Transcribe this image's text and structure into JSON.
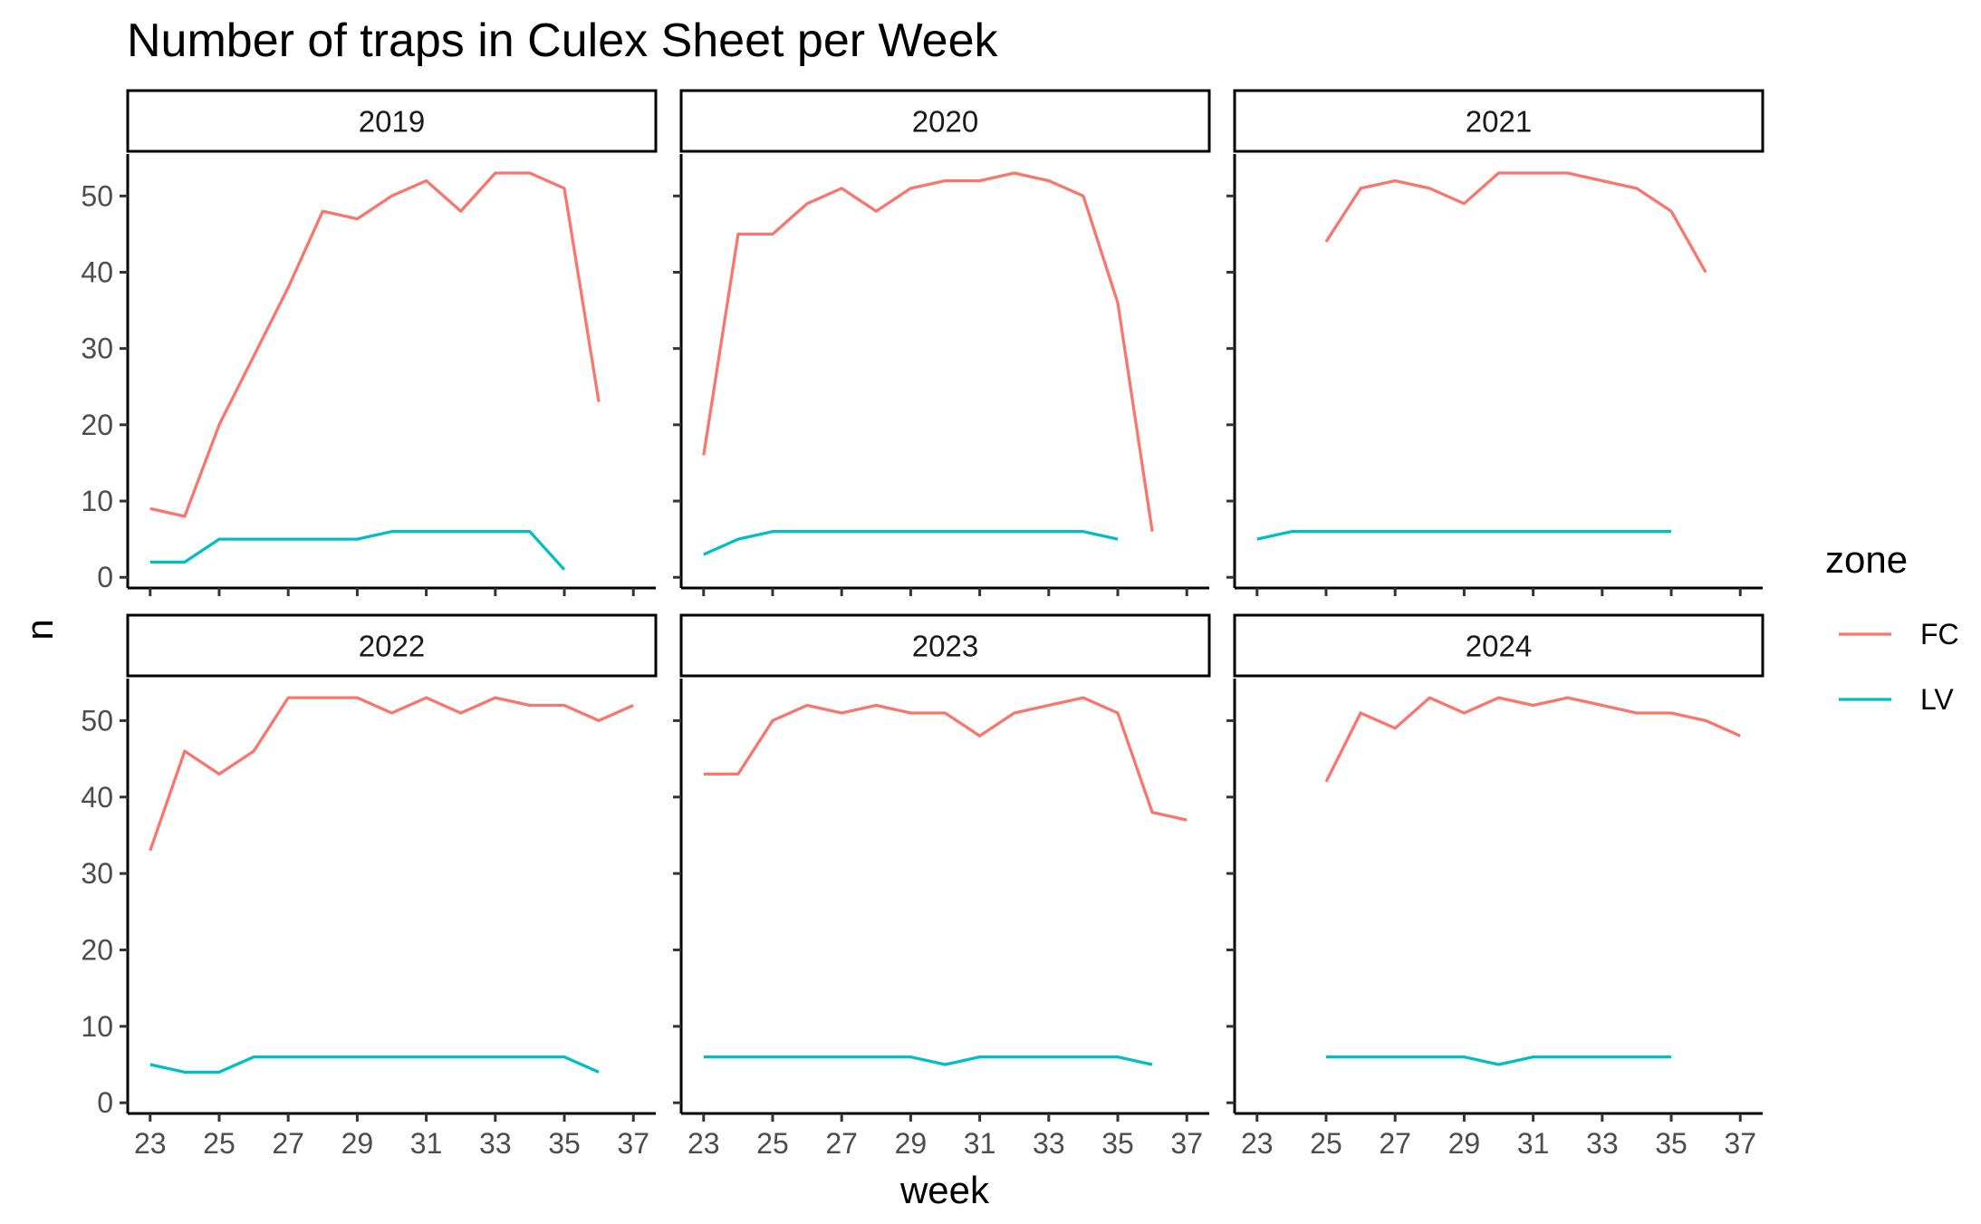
{
  "chart_data": {
    "type": "line",
    "title": "Number of traps in Culex Sheet per Week",
    "xlabel": "week",
    "ylabel": "n",
    "xlim": [
      22.35,
      37.65
    ],
    "ylim": [
      -1.4,
      55.5
    ],
    "x_ticks": [
      23,
      25,
      27,
      29,
      31,
      33,
      35,
      37
    ],
    "y_ticks": [
      0,
      10,
      20,
      30,
      40,
      50
    ],
    "legend": {
      "title": "zone",
      "position": "right",
      "entries": [
        "FC",
        "LV"
      ]
    },
    "series_colors": {
      "FC": "#F8766D",
      "LV": "#00BFC4"
    },
    "grid": false,
    "facets": [
      {
        "label": "2019",
        "series": [
          {
            "name": "FC",
            "x": [
              23,
              24,
              25,
              26,
              27,
              28,
              29,
              30,
              31,
              32,
              33,
              34,
              35,
              36
            ],
            "values": [
              9,
              8,
              20,
              29,
              38,
              48,
              47,
              50,
              52,
              48,
              53,
              53,
              51,
              23
            ]
          },
          {
            "name": "LV",
            "x": [
              23,
              24,
              25,
              26,
              27,
              28,
              29,
              30,
              31,
              32,
              33,
              34,
              35
            ],
            "values": [
              2,
              2,
              5,
              5,
              5,
              5,
              5,
              6,
              6,
              6,
              6,
              6,
              1
            ]
          }
        ]
      },
      {
        "label": "2020",
        "series": [
          {
            "name": "FC",
            "x": [
              23,
              24,
              25,
              26,
              27,
              28,
              29,
              30,
              31,
              32,
              33,
              34,
              35,
              36
            ],
            "values": [
              16,
              45,
              45,
              49,
              51,
              48,
              51,
              52,
              52,
              53,
              52,
              50,
              36,
              6
            ]
          },
          {
            "name": "LV",
            "x": [
              23,
              24,
              25,
              26,
              27,
              28,
              29,
              30,
              31,
              32,
              33,
              34,
              35
            ],
            "values": [
              3,
              5,
              6,
              6,
              6,
              6,
              6,
              6,
              6,
              6,
              6,
              6,
              5
            ]
          }
        ]
      },
      {
        "label": "2021",
        "series": [
          {
            "name": "FC",
            "x": [
              25,
              26,
              27,
              28,
              29,
              30,
              31,
              32,
              33,
              34,
              35,
              36
            ],
            "values": [
              44,
              51,
              52,
              51,
              49,
              53,
              53,
              53,
              52,
              51,
              48,
              40
            ]
          },
          {
            "name": "LV",
            "x": [
              23,
              24,
              25,
              26,
              27,
              28,
              29,
              30,
              31,
              32,
              33,
              34,
              35
            ],
            "values": [
              5,
              6,
              6,
              6,
              6,
              6,
              6,
              6,
              6,
              6,
              6,
              6,
              6
            ]
          }
        ]
      },
      {
        "label": "2022",
        "series": [
          {
            "name": "FC",
            "x": [
              23,
              24,
              25,
              26,
              27,
              28,
              29,
              30,
              31,
              32,
              33,
              34,
              35,
              36,
              37
            ],
            "values": [
              33,
              46,
              43,
              46,
              53,
              53,
              53,
              51,
              53,
              51,
              53,
              52,
              52,
              50,
              52
            ]
          },
          {
            "name": "LV",
            "x": [
              23,
              24,
              25,
              26,
              27,
              28,
              29,
              30,
              31,
              32,
              33,
              34,
              35,
              36
            ],
            "values": [
              5,
              4,
              4,
              6,
              6,
              6,
              6,
              6,
              6,
              6,
              6,
              6,
              6,
              4
            ]
          }
        ]
      },
      {
        "label": "2023",
        "series": [
          {
            "name": "FC",
            "x": [
              23,
              24,
              25,
              26,
              27,
              28,
              29,
              30,
              31,
              32,
              33,
              34,
              35,
              36,
              37
            ],
            "values": [
              43,
              43,
              50,
              52,
              51,
              52,
              51,
              51,
              48,
              51,
              52,
              53,
              51,
              38,
              37
            ]
          },
          {
            "name": "LV",
            "x": [
              23,
              24,
              25,
              26,
              27,
              28,
              29,
              30,
              31,
              32,
              33,
              34,
              35,
              36
            ],
            "values": [
              6,
              6,
              6,
              6,
              6,
              6,
              6,
              5,
              6,
              6,
              6,
              6,
              6,
              5
            ]
          }
        ]
      },
      {
        "label": "2024",
        "series": [
          {
            "name": "FC",
            "x": [
              25,
              26,
              27,
              28,
              29,
              30,
              31,
              32,
              33,
              34,
              35,
              36,
              37
            ],
            "values": [
              42,
              51,
              49,
              53,
              51,
              53,
              52,
              53,
              52,
              51,
              51,
              50,
              48
            ]
          },
          {
            "name": "LV",
            "x": [
              25,
              26,
              27,
              28,
              29,
              30,
              31,
              32,
              33,
              34,
              35
            ],
            "values": [
              6,
              6,
              6,
              6,
              6,
              5,
              6,
              6,
              6,
              6,
              6
            ]
          }
        ]
      }
    ]
  }
}
